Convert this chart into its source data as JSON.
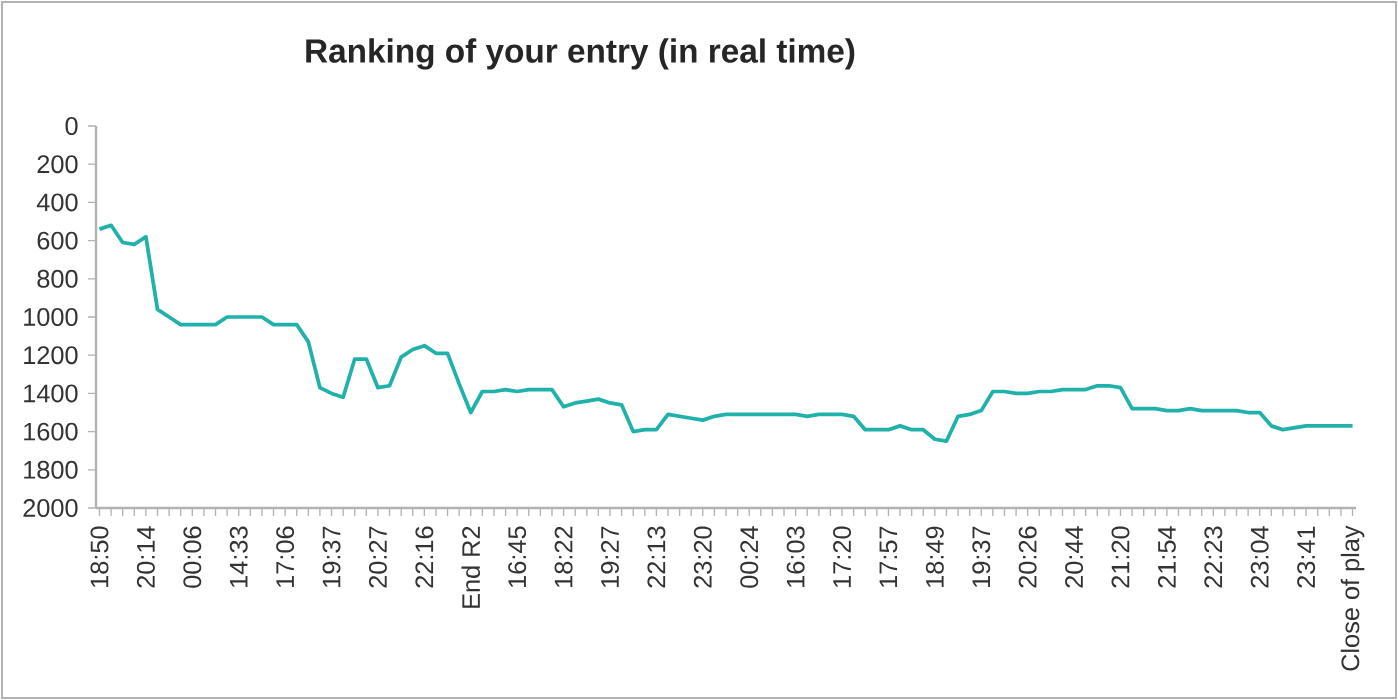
{
  "chart_data": {
    "type": "line",
    "title": "Ranking of your entry (in real time)",
    "categories": [
      "18:50",
      null,
      null,
      null,
      "20:14",
      null,
      null,
      null,
      "00:06",
      null,
      null,
      null,
      "14:33",
      null,
      null,
      null,
      "17:06",
      null,
      null,
      null,
      "19:37",
      null,
      null,
      null,
      "20:27",
      null,
      null,
      null,
      "22:16",
      null,
      null,
      null,
      "End R2",
      null,
      null,
      null,
      "16:45",
      null,
      null,
      null,
      "18:22",
      null,
      null,
      null,
      "19:27",
      null,
      null,
      null,
      "22:13",
      null,
      null,
      null,
      "23:20",
      null,
      null,
      null,
      "00:24",
      null,
      null,
      null,
      "16:03",
      null,
      null,
      null,
      "17:20",
      null,
      null,
      null,
      "17:57",
      null,
      null,
      null,
      "18:49",
      null,
      null,
      null,
      "19:37",
      null,
      null,
      null,
      "20:26",
      null,
      null,
      null,
      "20:44",
      null,
      null,
      null,
      "21:20",
      null,
      null,
      null,
      "21:54",
      null,
      null,
      null,
      "22:23",
      null,
      null,
      null,
      "23:04",
      null,
      null,
      null,
      "23:41",
      null,
      null,
      null,
      "Close of play"
    ],
    "values": [
      540,
      520,
      610,
      620,
      580,
      960,
      1000,
      1040,
      1040,
      1040,
      1040,
      1000,
      1000,
      1000,
      1000,
      1040,
      1040,
      1040,
      1130,
      1370,
      1400,
      1420,
      1220,
      1220,
      1370,
      1360,
      1210,
      1170,
      1150,
      1190,
      1190,
      1350,
      1500,
      1390,
      1390,
      1380,
      1390,
      1380,
      1380,
      1380,
      1470,
      1450,
      1440,
      1430,
      1450,
      1460,
      1600,
      1590,
      1590,
      1510,
      1520,
      1530,
      1540,
      1520,
      1510,
      1510,
      1510,
      1510,
      1510,
      1510,
      1510,
      1520,
      1510,
      1510,
      1510,
      1520,
      1590,
      1590,
      1590,
      1570,
      1590,
      1590,
      1640,
      1650,
      1520,
      1510,
      1490,
      1390,
      1390,
      1400,
      1400,
      1390,
      1390,
      1380,
      1380,
      1380,
      1360,
      1360,
      1370,
      1480,
      1480,
      1480,
      1490,
      1490,
      1480,
      1490,
      1490,
      1490,
      1490,
      1500,
      1500,
      1570,
      1590,
      1580,
      1570,
      1570,
      1570,
      1570,
      1570
    ],
    "color": "#1fb1aa",
    "ylim": [
      2000,
      0
    ],
    "yticks": [
      0,
      200,
      400,
      600,
      800,
      1000,
      1200,
      1400,
      1600,
      1800,
      2000
    ]
  }
}
